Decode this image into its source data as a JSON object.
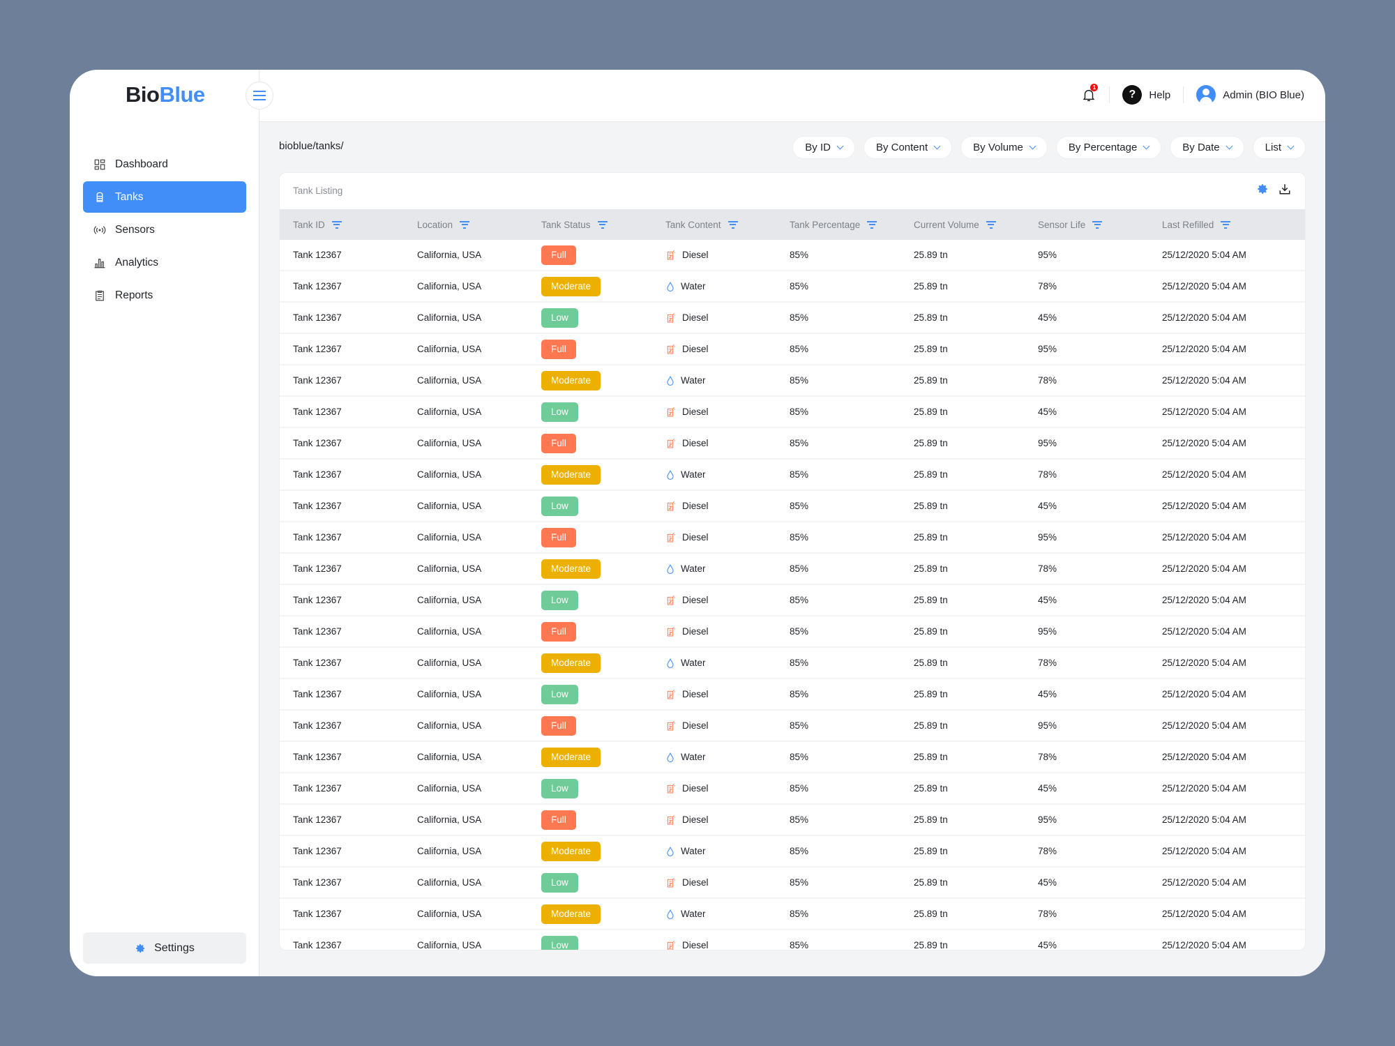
{
  "brand": {
    "part1": "Bio",
    "part2": "Blue"
  },
  "colors": {
    "accent": "#418ef8",
    "full": "#ff7852",
    "moderate": "#ecb100",
    "low": "#6fcb98"
  },
  "sidebar": {
    "items": [
      {
        "label": "Dashboard",
        "icon": "dashboard-icon"
      },
      {
        "label": "Tanks",
        "icon": "tank-icon",
        "active": true
      },
      {
        "label": "Sensors",
        "icon": "sensor-icon"
      },
      {
        "label": "Analytics",
        "icon": "analytics-icon"
      },
      {
        "label": "Reports",
        "icon": "reports-icon"
      }
    ],
    "settings": "Settings"
  },
  "header": {
    "notifications": "1",
    "help": "Help",
    "user": "Admin (BIO Blue)"
  },
  "breadcrumb": "bioblue/tanks/",
  "filters": [
    "By ID",
    "By Content",
    "By Volume",
    "By Percentage",
    "By Date",
    "List"
  ],
  "table": {
    "title": "Tank Listing",
    "columns": [
      "Tank ID",
      "Location",
      "Tank Status",
      "Tank Content",
      "Tank Percentage",
      "Current Volume",
      "Sensor Life",
      "Last Refilled"
    ],
    "rows": [
      [
        "Tank 12367",
        "California, USA",
        "Full",
        "Diesel",
        "85%",
        "25.89 tn",
        "95%",
        "25/12/2020 5:04 AM"
      ],
      [
        "Tank 12367",
        "California, USA",
        "Moderate",
        "Water",
        "85%",
        "25.89 tn",
        "78%",
        "25/12/2020 5:04 AM"
      ],
      [
        "Tank 12367",
        "California, USA",
        "Low",
        "Diesel",
        "85%",
        "25.89 tn",
        "45%",
        "25/12/2020 5:04 AM"
      ],
      [
        "Tank 12367",
        "California, USA",
        "Full",
        "Diesel",
        "85%",
        "25.89 tn",
        "95%",
        "25/12/2020 5:04 AM"
      ],
      [
        "Tank 12367",
        "California, USA",
        "Moderate",
        "Water",
        "85%",
        "25.89 tn",
        "78%",
        "25/12/2020 5:04 AM"
      ],
      [
        "Tank 12367",
        "California, USA",
        "Low",
        "Diesel",
        "85%",
        "25.89 tn",
        "45%",
        "25/12/2020 5:04 AM"
      ],
      [
        "Tank 12367",
        "California, USA",
        "Full",
        "Diesel",
        "85%",
        "25.89 tn",
        "95%",
        "25/12/2020 5:04 AM"
      ],
      [
        "Tank 12367",
        "California, USA",
        "Moderate",
        "Water",
        "85%",
        "25.89 tn",
        "78%",
        "25/12/2020 5:04 AM"
      ],
      [
        "Tank 12367",
        "California, USA",
        "Low",
        "Diesel",
        "85%",
        "25.89 tn",
        "45%",
        "25/12/2020 5:04 AM"
      ],
      [
        "Tank 12367",
        "California, USA",
        "Full",
        "Diesel",
        "85%",
        "25.89 tn",
        "95%",
        "25/12/2020 5:04 AM"
      ],
      [
        "Tank 12367",
        "California, USA",
        "Moderate",
        "Water",
        "85%",
        "25.89 tn",
        "78%",
        "25/12/2020 5:04 AM"
      ],
      [
        "Tank 12367",
        "California, USA",
        "Low",
        "Diesel",
        "85%",
        "25.89 tn",
        "45%",
        "25/12/2020 5:04 AM"
      ],
      [
        "Tank 12367",
        "California, USA",
        "Full",
        "Diesel",
        "85%",
        "25.89 tn",
        "95%",
        "25/12/2020 5:04 AM"
      ],
      [
        "Tank 12367",
        "California, USA",
        "Moderate",
        "Water",
        "85%",
        "25.89 tn",
        "78%",
        "25/12/2020 5:04 AM"
      ],
      [
        "Tank 12367",
        "California, USA",
        "Low",
        "Diesel",
        "85%",
        "25.89 tn",
        "45%",
        "25/12/2020 5:04 AM"
      ],
      [
        "Tank 12367",
        "California, USA",
        "Full",
        "Diesel",
        "85%",
        "25.89 tn",
        "95%",
        "25/12/2020 5:04 AM"
      ],
      [
        "Tank 12367",
        "California, USA",
        "Moderate",
        "Water",
        "85%",
        "25.89 tn",
        "78%",
        "25/12/2020 5:04 AM"
      ],
      [
        "Tank 12367",
        "California, USA",
        "Low",
        "Diesel",
        "85%",
        "25.89 tn",
        "45%",
        "25/12/2020 5:04 AM"
      ],
      [
        "Tank 12367",
        "California, USA",
        "Full",
        "Diesel",
        "85%",
        "25.89 tn",
        "95%",
        "25/12/2020 5:04 AM"
      ],
      [
        "Tank 12367",
        "California, USA",
        "Moderate",
        "Water",
        "85%",
        "25.89 tn",
        "78%",
        "25/12/2020 5:04 AM"
      ],
      [
        "Tank 12367",
        "California, USA",
        "Low",
        "Diesel",
        "85%",
        "25.89 tn",
        "45%",
        "25/12/2020 5:04 AM"
      ],
      [
        "Tank 12367",
        "California, USA",
        "Moderate",
        "Water",
        "85%",
        "25.89 tn",
        "78%",
        "25/12/2020 5:04 AM"
      ],
      [
        "Tank 12367",
        "California, USA",
        "Low",
        "Diesel",
        "85%",
        "25.89 tn",
        "45%",
        "25/12/2020 5:04 AM"
      ]
    ]
  }
}
